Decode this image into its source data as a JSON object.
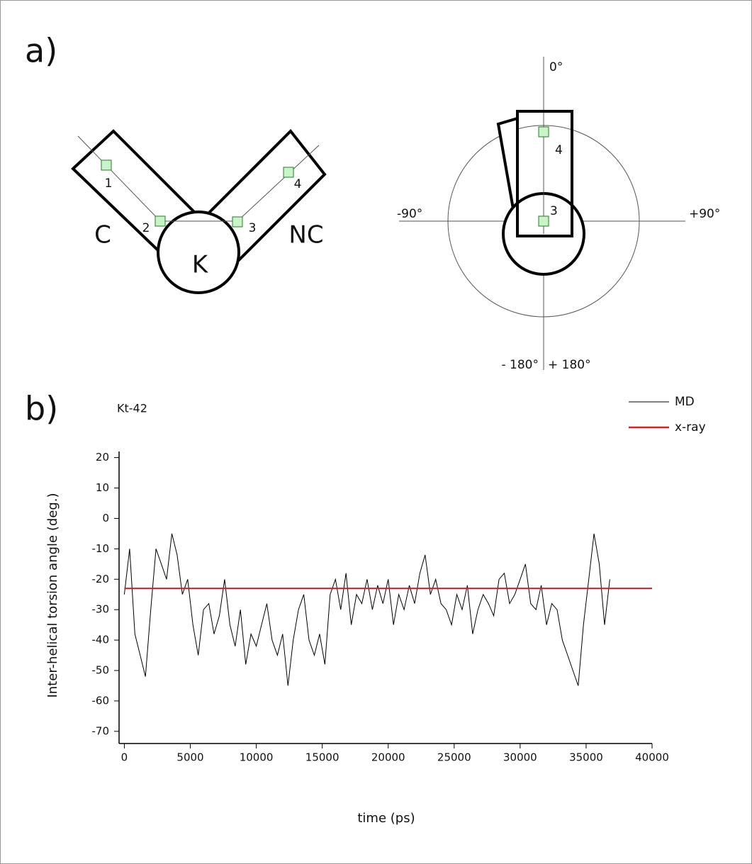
{
  "diagram": {
    "panel_a": "a)",
    "left": {
      "c_label": "C",
      "nc_label": "NC",
      "k_label": "K",
      "points": [
        "1",
        "2",
        "3",
        "4"
      ]
    },
    "right": {
      "top": "0°",
      "left": "-90°",
      "right": "+90°",
      "bottom_left": "- 180°",
      "bottom_right": "+ 180°",
      "points": [
        "3",
        "4"
      ]
    },
    "panel_b": "b)"
  },
  "chart_data": {
    "type": "line",
    "title": "Kt-42",
    "x_label": "time (ps)",
    "y_label": "Inter-helical torsion angle (deg.)",
    "xlim": [
      -400,
      40000
    ],
    "ylim": [
      -74,
      22
    ],
    "xticks": [
      0,
      5000,
      10000,
      15000,
      20000,
      25000,
      30000,
      35000,
      40000
    ],
    "yticks": [
      20,
      10,
      0,
      -10,
      -20,
      -30,
      -40,
      -50,
      -60,
      -70
    ],
    "legend": "top-right",
    "series": [
      {
        "name": "MD",
        "color": "#000000",
        "x": [
          0,
          400,
          800,
          1200,
          1600,
          2000,
          2400,
          2800,
          3200,
          3600,
          4000,
          4400,
          4800,
          5200,
          5600,
          6000,
          6400,
          6800,
          7200,
          7600,
          8000,
          8400,
          8800,
          9200,
          9600,
          10000,
          10400,
          10800,
          11200,
          11600,
          12000,
          12400,
          12800,
          13200,
          13600,
          14000,
          14400,
          14800,
          15200,
          15600,
          16000,
          16400,
          16800,
          17200,
          17600,
          18000,
          18400,
          18800,
          19200,
          19600,
          20000,
          20400,
          20800,
          21200,
          21600,
          22000,
          22400,
          22800,
          23200,
          23600,
          24000,
          24400,
          24800,
          25200,
          25600,
          26000,
          26400,
          26800,
          27200,
          27600,
          28000,
          28400,
          28800,
          29200,
          29600,
          30000,
          30400,
          30800,
          31200,
          31600,
          32000,
          32400,
          32800,
          33200,
          33600,
          34000,
          34400,
          34800,
          35200,
          35600,
          36000,
          36400,
          36800
        ],
        "values": [
          -25,
          -10,
          -38,
          -45,
          -52,
          -30,
          -10,
          -15,
          -20,
          -5,
          -12,
          -25,
          -20,
          -35,
          -45,
          -30,
          -28,
          -38,
          -32,
          -20,
          -35,
          -42,
          -30,
          -48,
          -38,
          -42,
          -35,
          -28,
          -40,
          -45,
          -38,
          -55,
          -40,
          -30,
          -25,
          -40,
          -45,
          -38,
          -48,
          -25,
          -20,
          -30,
          -18,
          -35,
          -25,
          -28,
          -20,
          -30,
          -22,
          -28,
          -20,
          -35,
          -25,
          -30,
          -22,
          -28,
          -18,
          -12,
          -25,
          -20,
          -28,
          -30,
          -35,
          -25,
          -30,
          -22,
          -38,
          -30,
          -25,
          -28,
          -32,
          -20,
          -18,
          -28,
          -25,
          -20,
          -15,
          -28,
          -30,
          -22,
          -35,
          -28,
          -30,
          -40,
          -45,
          -50,
          -55,
          -35,
          -20,
          -5,
          -15,
          -35,
          -20
        ]
      },
      {
        "name": "x-ray",
        "color": "#d42020",
        "x": [
          0,
          40000
        ],
        "values": [
          -23,
          -23
        ]
      }
    ]
  }
}
